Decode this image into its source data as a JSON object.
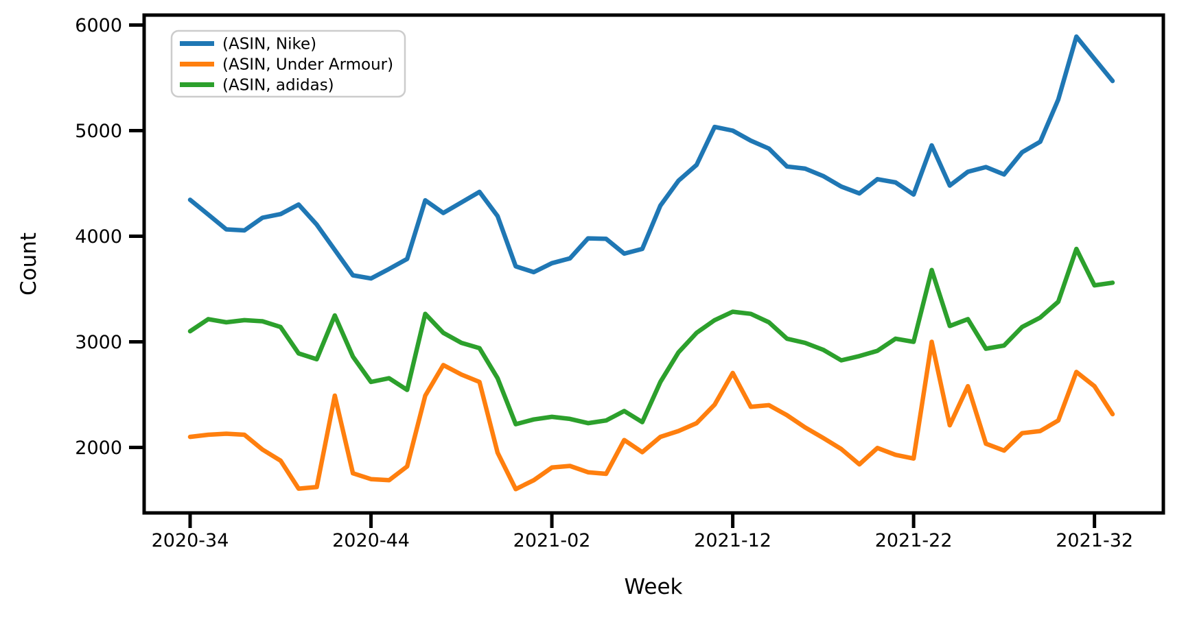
{
  "chart_data": {
    "type": "line",
    "title": "",
    "xlabel": "Week",
    "ylabel": "Count",
    "grid": false,
    "background": "#ffffff",
    "ylim": [
      1380,
      6094
    ],
    "y_ticks": [
      2000,
      3000,
      4000,
      5000,
      6000
    ],
    "x_ticks": [
      {
        "index": 0,
        "label": "2020-34"
      },
      {
        "index": 10,
        "label": "2020-44"
      },
      {
        "index": 20,
        "label": "2021-02"
      },
      {
        "index": 30,
        "label": "2021-12"
      },
      {
        "index": 40,
        "label": "2021-22"
      },
      {
        "index": 50,
        "label": "2021-32"
      }
    ],
    "x_categories": [
      "2020-34",
      "2020-35",
      "2020-36",
      "2020-37",
      "2020-38",
      "2020-39",
      "2020-40",
      "2020-41",
      "2020-42",
      "2020-43",
      "2020-44",
      "2020-45",
      "2020-46",
      "2020-47",
      "2020-48",
      "2020-49",
      "2020-50",
      "2020-51",
      "2020-52",
      "2021-01",
      "2021-02",
      "2021-03",
      "2021-04",
      "2021-05",
      "2021-06",
      "2021-07",
      "2021-08",
      "2021-09",
      "2021-10",
      "2021-11",
      "2021-12",
      "2021-13",
      "2021-14",
      "2021-15",
      "2021-16",
      "2021-17",
      "2021-18",
      "2021-19",
      "2021-20",
      "2021-21",
      "2021-22",
      "2021-23",
      "2021-24",
      "2021-25",
      "2021-26",
      "2021-27",
      "2021-28",
      "2021-29",
      "2021-30",
      "2021-31",
      "2021-32",
      "2021-33"
    ],
    "legend": {
      "position": "upper-left",
      "entries": [
        "(ASIN, Nike)",
        "(ASIN, Under Armour)",
        "(ASIN, adidas)"
      ]
    },
    "series": [
      {
        "name": "(ASIN, Nike)",
        "key": "nike",
        "color": "#1f77b4",
        "values": [
          4345,
          4205,
          4065,
          4055,
          4175,
          4210,
          4300,
          4110,
          3870,
          3630,
          3600,
          3690,
          3785,
          4340,
          4220,
          4320,
          4420,
          4190,
          3715,
          3660,
          3745,
          3790,
          3980,
          3975,
          3835,
          3880,
          4290,
          4525,
          4675,
          5035,
          5000,
          4905,
          4830,
          4660,
          4640,
          4570,
          4470,
          4405,
          4540,
          4510,
          4395,
          4860,
          4480,
          4610,
          4655,
          4585,
          4795,
          4895,
          5295,
          5890,
          5680,
          5470
        ]
      },
      {
        "name": "(ASIN, Under Armour)",
        "key": "under-armour",
        "color": "#ff7f0e",
        "values": [
          2100,
          2120,
          2130,
          2120,
          1980,
          1875,
          1610,
          1625,
          2490,
          1755,
          1700,
          1690,
          1820,
          2490,
          2780,
          2690,
          2620,
          1950,
          1605,
          1690,
          1810,
          1825,
          1765,
          1750,
          2070,
          1955,
          2100,
          2155,
          2230,
          2405,
          2705,
          2385,
          2400,
          2305,
          2190,
          2090,
          1985,
          1840,
          1995,
          1930,
          1895,
          3000,
          2210,
          2580,
          2035,
          1970,
          2135,
          2155,
          2255,
          2715,
          2580,
          2315
        ]
      },
      {
        "name": "(ASIN, adidas)",
        "key": "adidas",
        "color": "#2ca02c",
        "values": [
          3100,
          3215,
          3185,
          3205,
          3195,
          3140,
          2890,
          2835,
          3250,
          2860,
          2620,
          2655,
          2545,
          3265,
          3085,
          2990,
          2940,
          2655,
          2220,
          2265,
          2290,
          2270,
          2230,
          2255,
          2345,
          2240,
          2620,
          2900,
          3085,
          3205,
          3285,
          3265,
          3185,
          3030,
          2990,
          2925,
          2825,
          2865,
          2915,
          3030,
          3000,
          3680,
          3150,
          3215,
          2935,
          2965,
          3140,
          3230,
          3380,
          3880,
          3535,
          3560
        ]
      }
    ]
  }
}
